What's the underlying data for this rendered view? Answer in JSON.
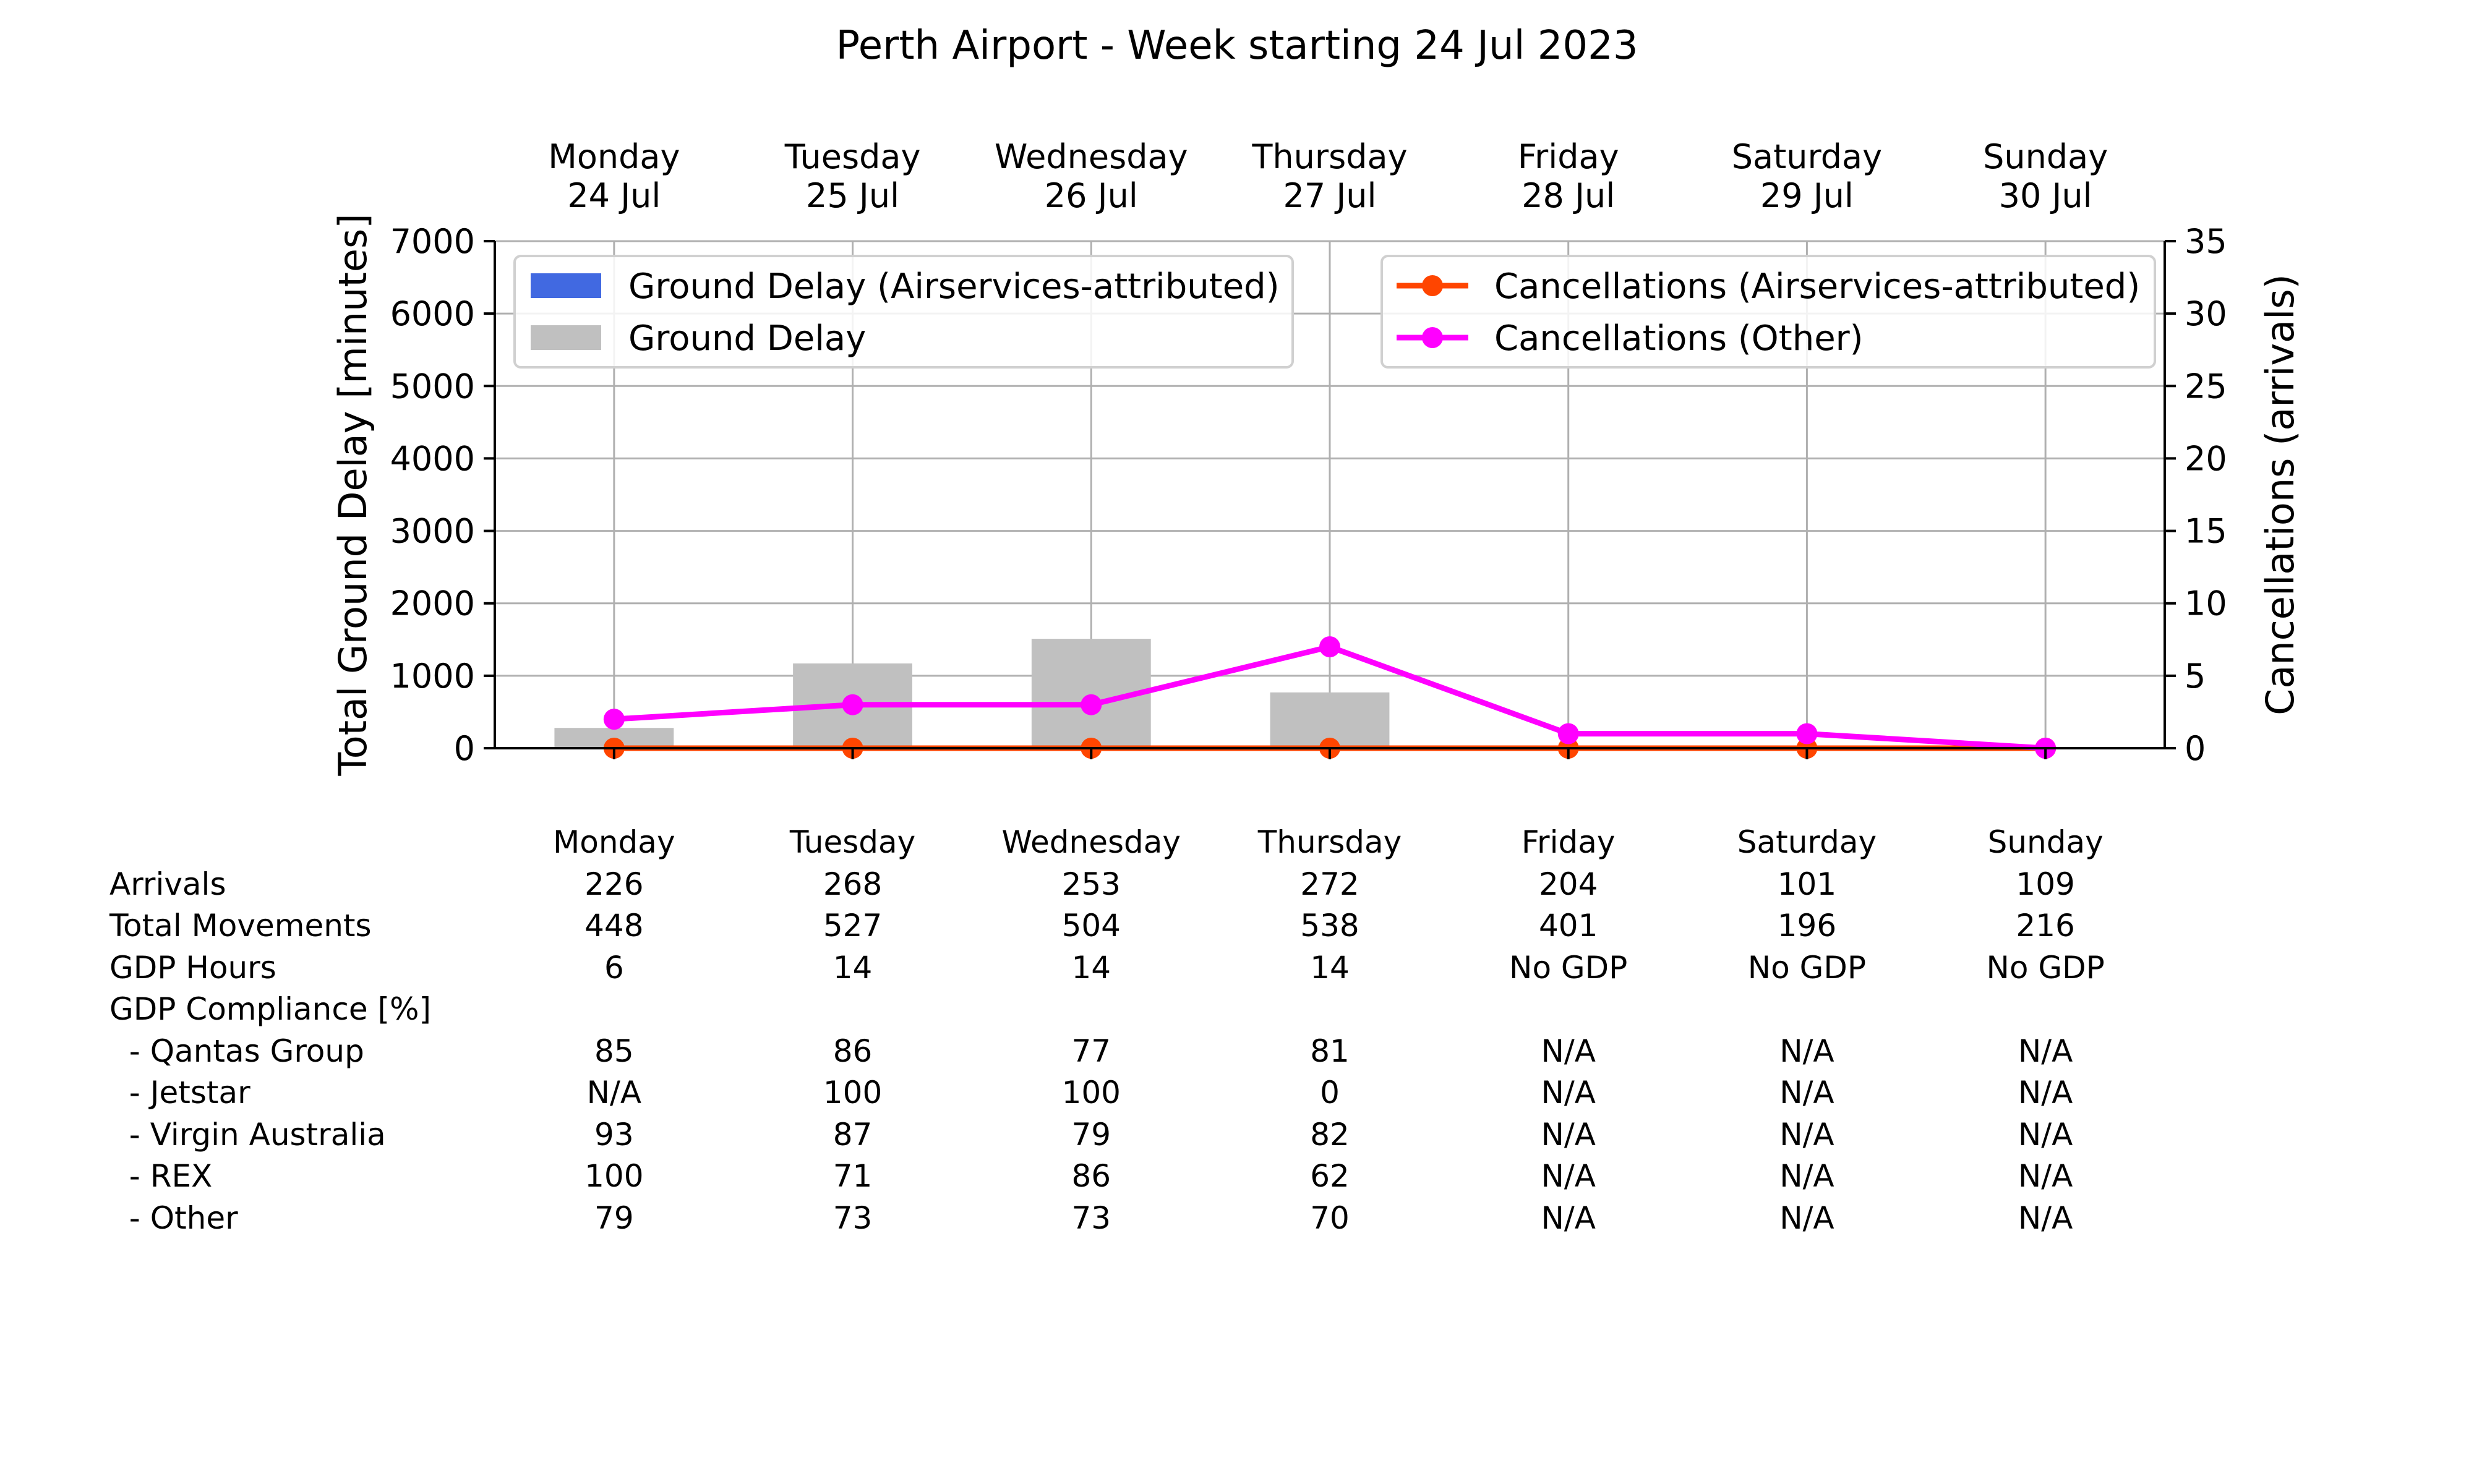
{
  "title": "Perth Airport - Week starting 24 Jul 2023",
  "chart_data": {
    "type": "bar",
    "days": [
      {
        "day": "Monday",
        "date": "24 Jul"
      },
      {
        "day": "Tuesday",
        "date": "25 Jul"
      },
      {
        "day": "Wednesday",
        "date": "26 Jul"
      },
      {
        "day": "Thursday",
        "date": "27 Jul"
      },
      {
        "day": "Friday",
        "date": "28 Jul"
      },
      {
        "day": "Saturday",
        "date": "29 Jul"
      },
      {
        "day": "Sunday",
        "date": "30 Jul"
      }
    ],
    "left_axis": {
      "label": "Total Ground Delay [minutes]",
      "ylim": [
        0,
        7000
      ],
      "ticks": [
        0,
        1000,
        2000,
        3000,
        4000,
        5000,
        6000,
        7000
      ]
    },
    "right_axis": {
      "label": "Cancellations (arrivals)",
      "ylim": [
        0,
        35
      ],
      "ticks": [
        0,
        5,
        10,
        15,
        20,
        25,
        30,
        35
      ]
    },
    "grid": true,
    "bar_series": [
      {
        "name": "Ground Delay (Airservices-attributed)",
        "color": "#4169e1",
        "values": [
          0,
          0,
          0,
          0,
          0,
          0,
          0
        ]
      },
      {
        "name": "Ground Delay",
        "color": "#c0c0c0",
        "values": [
          280,
          1170,
          1510,
          770,
          0,
          0,
          0
        ]
      }
    ],
    "line_series": [
      {
        "name": "Cancellations (Airservices-attributed)",
        "color": "#ff4500",
        "values": [
          0,
          0,
          0,
          0,
          0,
          0,
          0
        ]
      },
      {
        "name": "Cancellations (Other)",
        "color": "#ff00ff",
        "values": [
          2,
          3,
          3,
          7,
          1,
          1,
          0
        ]
      }
    ],
    "legend_left_position": "upper left",
    "legend_right_position": "upper right"
  },
  "stats_table": {
    "day_headers": [
      "Monday",
      "Tuesday",
      "Wednesday",
      "Thursday",
      "Friday",
      "Saturday",
      "Sunday"
    ],
    "rows": [
      {
        "label": "Arrivals",
        "values": [
          "226",
          "268",
          "253",
          "272",
          "204",
          "101",
          "109"
        ]
      },
      {
        "label": "Total Movements",
        "values": [
          "448",
          "527",
          "504",
          "538",
          "401",
          "196",
          "216"
        ]
      },
      {
        "label": "GDP Hours",
        "values": [
          "6",
          "14",
          "14",
          "14",
          "No GDP",
          "No GDP",
          "No GDP"
        ]
      },
      {
        "label": "GDP Compliance [%]",
        "values": []
      },
      {
        "label": "  - Qantas Group",
        "values": [
          "85",
          "86",
          "77",
          "81",
          "N/A",
          "N/A",
          "N/A"
        ]
      },
      {
        "label": "  - Jetstar",
        "values": [
          "N/A",
          "100",
          "100",
          "0",
          "N/A",
          "N/A",
          "N/A"
        ]
      },
      {
        "label": "  - Virgin Australia",
        "values": [
          "93",
          "87",
          "79",
          "82",
          "N/A",
          "N/A",
          "N/A"
        ]
      },
      {
        "label": "  - REX",
        "values": [
          "100",
          "71",
          "86",
          "62",
          "N/A",
          "N/A",
          "N/A"
        ]
      },
      {
        "label": "  - Other",
        "values": [
          "79",
          "73",
          "73",
          "70",
          "N/A",
          "N/A",
          "N/A"
        ]
      }
    ]
  }
}
